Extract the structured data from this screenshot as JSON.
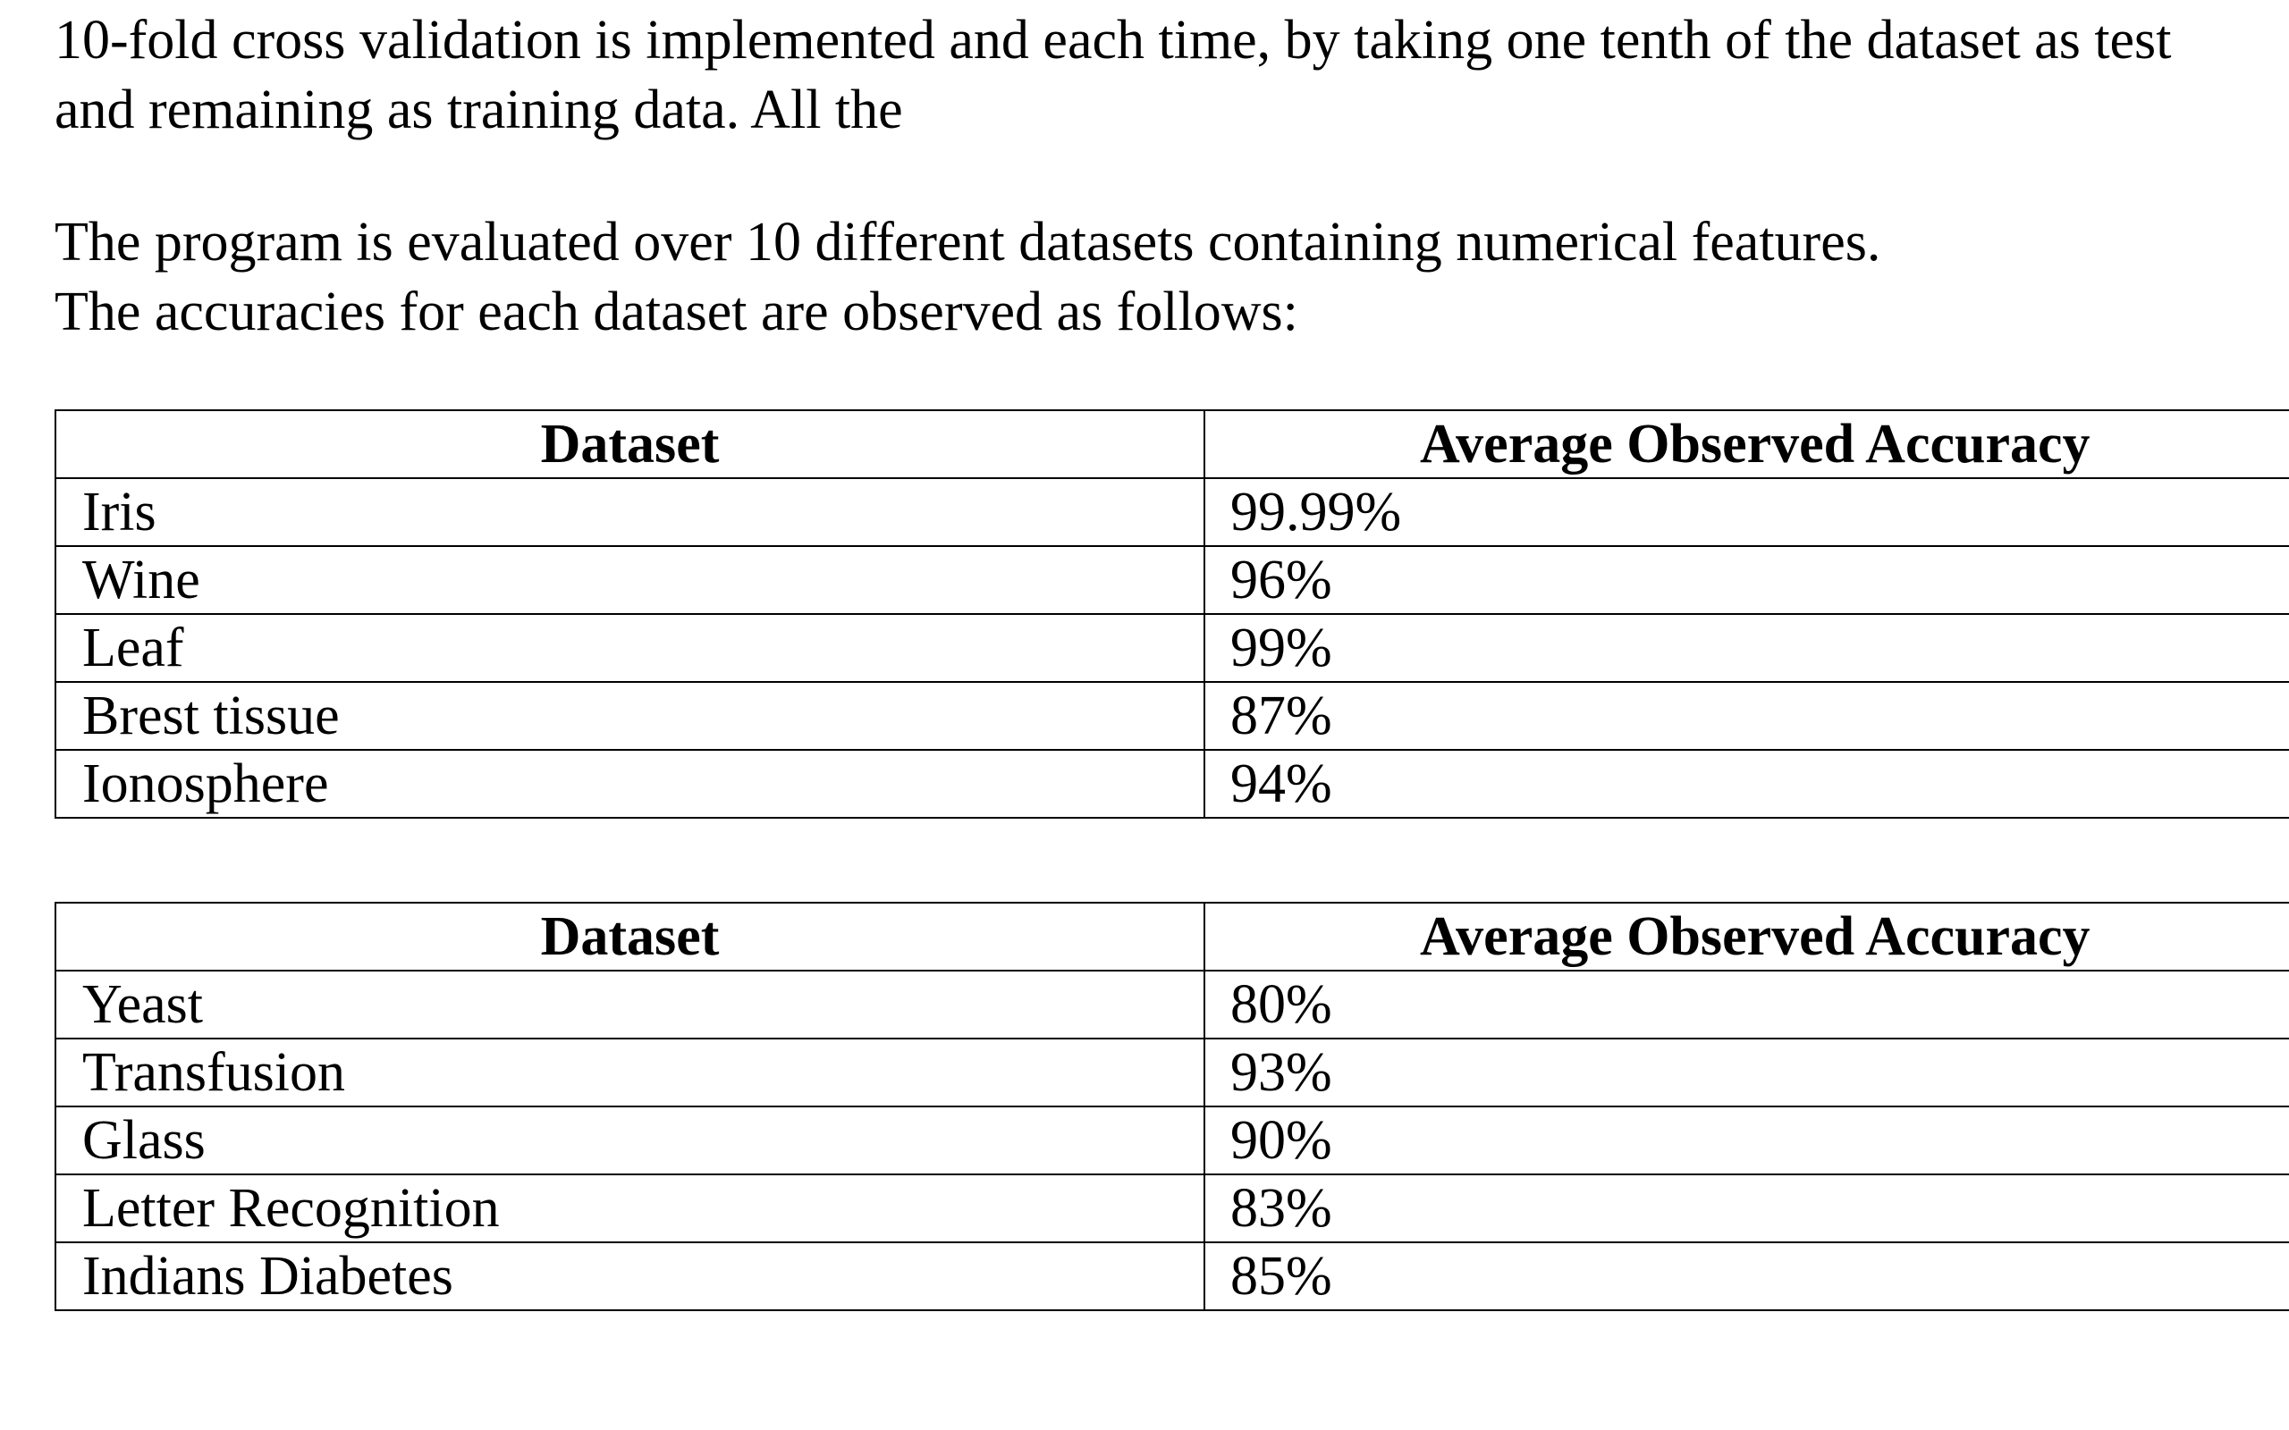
{
  "intro": {
    "lines": [
      "10-fold cross validation is implemented and each time, by taking one tenth of the dataset as test",
      "and remaining as training data. All the"
    ]
  },
  "summary": {
    "lines": [
      "The program is evaluated over 10 different datasets containing numerical features.",
      "The accuracies for each dataset are observed as follows:"
    ]
  },
  "tables": [
    {
      "headers": [
        "Dataset",
        "Average Observed Accuracy"
      ],
      "rows": [
        {
          "dataset": "Iris",
          "accuracy": "99.99%"
        },
        {
          "dataset": "Wine",
          "accuracy": "96%"
        },
        {
          "dataset": "Leaf",
          "accuracy": "99%"
        },
        {
          "dataset": "Brest tissue",
          "accuracy": "87%"
        },
        {
          "dataset": "Ionosphere",
          "accuracy": "94%"
        }
      ]
    },
    {
      "headers": [
        "Dataset",
        "Average Observed Accuracy"
      ],
      "rows": [
        {
          "dataset": "Yeast",
          "accuracy": "80%"
        },
        {
          "dataset": "Transfusion",
          "accuracy": "93%"
        },
        {
          "dataset": "Glass",
          "accuracy": "90%"
        },
        {
          "dataset": "Letter Recognition",
          "accuracy": "83%"
        },
        {
          "dataset": "Indians Diabetes",
          "accuracy": "85%"
        }
      ]
    }
  ]
}
